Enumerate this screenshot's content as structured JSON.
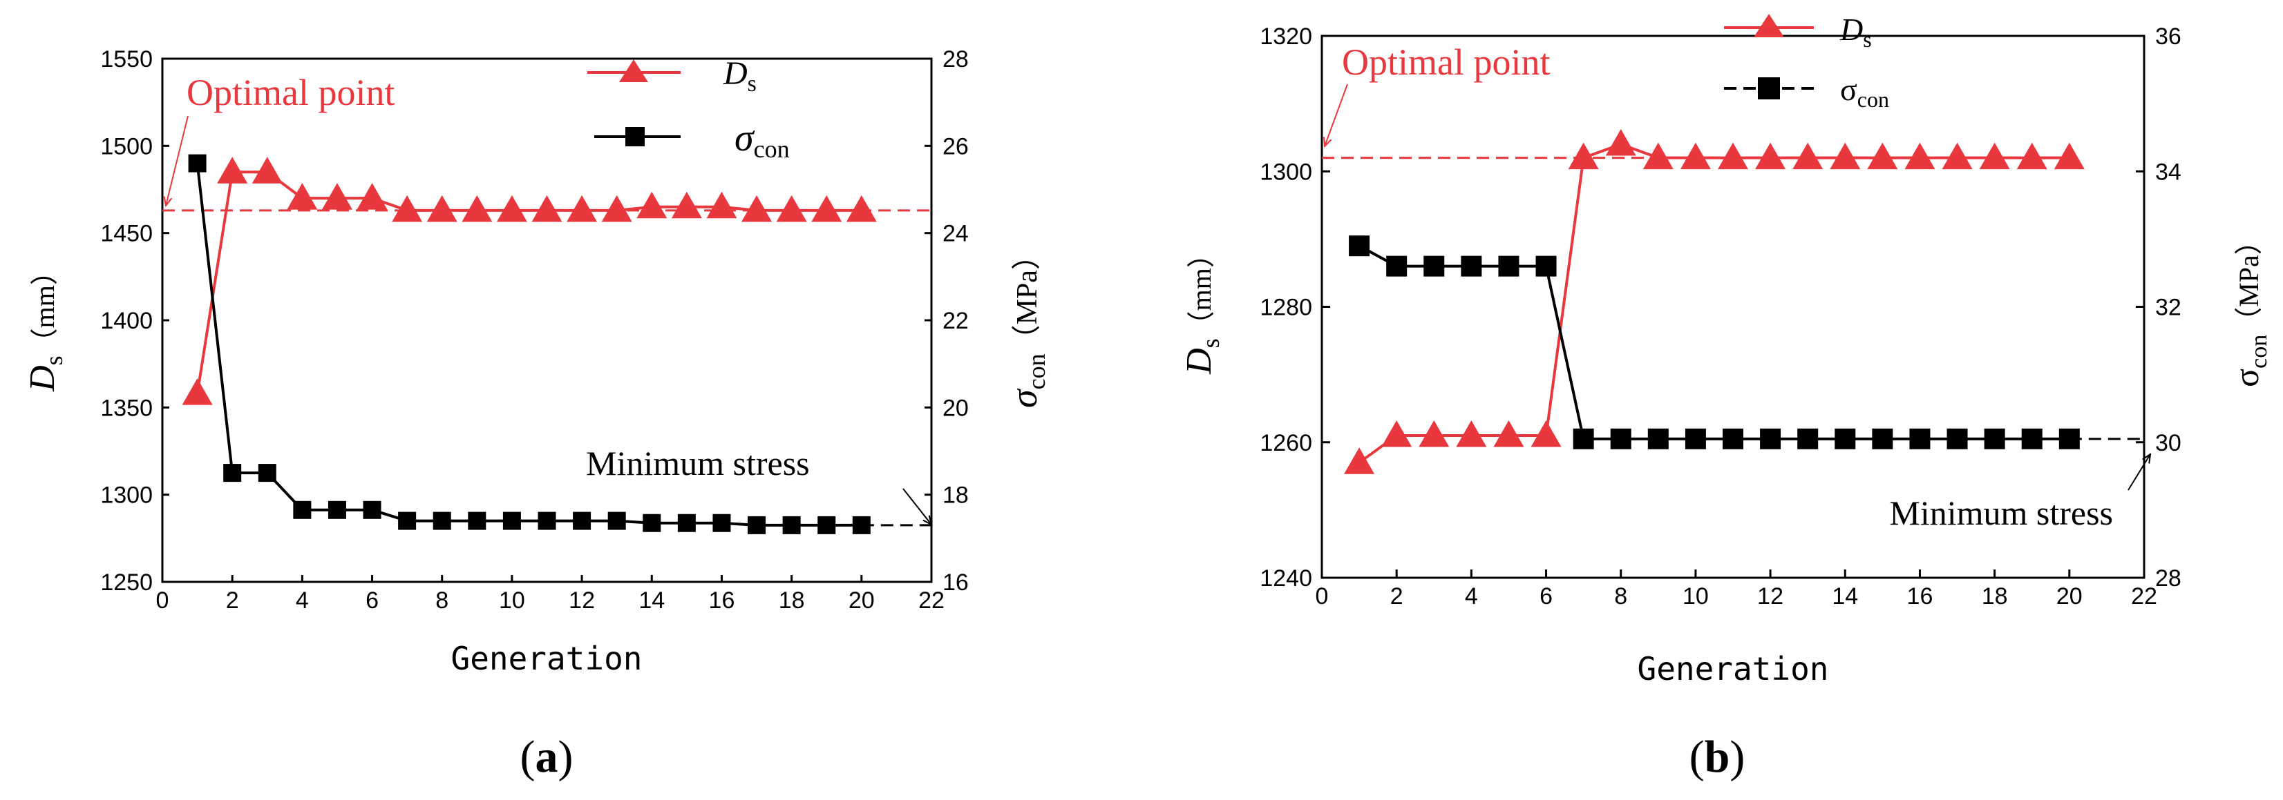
{
  "colors": {
    "red": "#e8383d",
    "black": "#000000"
  },
  "chart_data": [
    {
      "type": "line",
      "panel": "(a)",
      "xlabel": "Generation",
      "xlim": [
        0,
        22
      ],
      "xticks": [
        0,
        2,
        4,
        6,
        8,
        10,
        12,
        14,
        16,
        18,
        20,
        22
      ],
      "y_left": {
        "label_main": "D",
        "label_sub": "s",
        "label_unit": "（mm）",
        "lim": [
          1250,
          1550
        ],
        "ticks": [
          1250,
          1300,
          1350,
          1400,
          1450,
          1500,
          1550
        ]
      },
      "y_right": {
        "label_main": "σ",
        "label_sub": "con",
        "label_unit": "（MPa）",
        "lim": [
          16,
          28
        ],
        "ticks": [
          16,
          18,
          20,
          22,
          24,
          26,
          28
        ]
      },
      "series": [
        {
          "name": "Ds",
          "legend_main": "D",
          "legend_sub": "s",
          "axis": "left",
          "color": "#e8383d",
          "marker": "triangle",
          "x": [
            1,
            2,
            3,
            4,
            5,
            6,
            7,
            8,
            9,
            10,
            11,
            12,
            13,
            14,
            15,
            16,
            17,
            18,
            19,
            20
          ],
          "values": [
            1358,
            1485,
            1485,
            1470,
            1470,
            1470,
            1463,
            1463,
            1463,
            1463,
            1463,
            1463,
            1463,
            1465,
            1465,
            1465,
            1463,
            1463,
            1463,
            1463
          ]
        },
        {
          "name": "σcon",
          "legend_main": "σ",
          "legend_sub": "con",
          "axis": "right",
          "color": "#000000",
          "marker": "square",
          "x": [
            1,
            2,
            3,
            4,
            5,
            6,
            7,
            8,
            9,
            10,
            11,
            12,
            13,
            14,
            15,
            16,
            17,
            18,
            19,
            20
          ],
          "values": [
            25.6,
            18.5,
            18.5,
            17.65,
            17.65,
            17.65,
            17.4,
            17.4,
            17.4,
            17.4,
            17.4,
            17.4,
            17.4,
            17.35,
            17.35,
            17.35,
            17.3,
            17.3,
            17.3,
            17.3
          ]
        }
      ],
      "reference_lines": [
        {
          "axis": "left",
          "value": 1463,
          "color": "#e8383d"
        },
        {
          "axis": "right",
          "value": 17.3,
          "color": "#000000",
          "x_from": 20,
          "x_to": 22
        }
      ],
      "annotations": [
        {
          "text": "Optimal point",
          "color": "#e8383d",
          "target_x": 0,
          "target_axis": "left",
          "target_y": 1463
        },
        {
          "text": "Minimum stress",
          "color": "#000000",
          "target_x": 22,
          "target_axis": "right",
          "target_y": 17.3
        }
      ]
    },
    {
      "type": "line",
      "panel": "(b)",
      "xlabel": "Generation",
      "xlim": [
        0,
        22
      ],
      "xticks": [
        0,
        2,
        4,
        6,
        8,
        10,
        12,
        14,
        16,
        18,
        20,
        22
      ],
      "y_left": {
        "label_main": "D",
        "label_sub": "s",
        "label_unit": "（mm）",
        "lim": [
          1240,
          1320
        ],
        "ticks": [
          1240,
          1260,
          1280,
          1300,
          1320
        ]
      },
      "y_right": {
        "label_main": "σ",
        "label_sub": "con",
        "label_unit": "（MPa）",
        "lim": [
          28,
          36
        ],
        "ticks": [
          28,
          30,
          32,
          34,
          36
        ]
      },
      "series": [
        {
          "name": "Ds",
          "legend_main": "D",
          "legend_sub": "s",
          "axis": "left",
          "color": "#e8383d",
          "marker": "triangle",
          "x": [
            1,
            2,
            3,
            4,
            5,
            6,
            7,
            8,
            9,
            10,
            11,
            12,
            13,
            14,
            15,
            16,
            17,
            18,
            19,
            20
          ],
          "values": [
            1257,
            1261,
            1261,
            1261,
            1261,
            1261,
            1302,
            1304,
            1302,
            1302,
            1302,
            1302,
            1302,
            1302,
            1302,
            1302,
            1302,
            1302,
            1302,
            1302
          ]
        },
        {
          "name": "σcon",
          "legend_main": "σ",
          "legend_sub": "con",
          "axis": "right",
          "color": "#000000",
          "marker": "square",
          "x": [
            1,
            2,
            3,
            4,
            5,
            6,
            7,
            8,
            9,
            10,
            11,
            12,
            13,
            14,
            15,
            16,
            17,
            18,
            19,
            20
          ],
          "values": [
            32.9,
            32.6,
            32.6,
            32.6,
            32.6,
            32.6,
            30.05,
            30.05,
            30.05,
            30.05,
            30.05,
            30.05,
            30.05,
            30.05,
            30.05,
            30.05,
            30.05,
            30.05,
            30.05,
            30.05
          ]
        }
      ],
      "reference_lines": [
        {
          "axis": "left",
          "value": 1302,
          "color": "#e8383d"
        },
        {
          "axis": "right",
          "value": 30.05,
          "color": "#000000",
          "x_from": 20,
          "x_to": 22
        }
      ],
      "annotations": [
        {
          "text": "Optimal point",
          "color": "#e8383d",
          "target_x": 0,
          "target_axis": "left",
          "target_y": 1302
        },
        {
          "text": "Minimum stress",
          "color": "#000000",
          "target_x": 22,
          "target_axis": "right",
          "target_y": 30.05
        }
      ]
    }
  ]
}
